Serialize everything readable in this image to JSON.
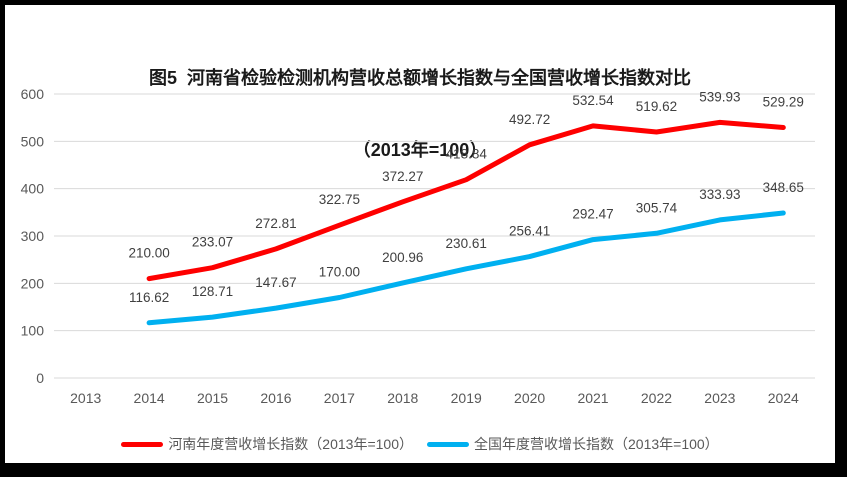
{
  "title": {
    "line1": "图5  河南省检验检测机构营收总额增长指数与全国营收增长指数对比",
    "line2": "（2013年=100）"
  },
  "colors": {
    "henan_series": "#fe0000",
    "national_series": "#00b0f0",
    "gridline": "#d9d9d9",
    "axis_text": "#595959",
    "data_label_text": "#404040",
    "frame_border": "#000000",
    "title_text": "#1a1a1a"
  },
  "chart_data": {
    "type": "line",
    "title": "图5  河南省检验检测机构营收总额增长指数与全国营收增长指数对比（2013年=100）",
    "categories": [
      "2013",
      "2014",
      "2015",
      "2016",
      "2017",
      "2018",
      "2019",
      "2020",
      "2021",
      "2022",
      "2023",
      "2024"
    ],
    "y_ticks": [
      0,
      100,
      200,
      300,
      400,
      500,
      600
    ],
    "y_tick_labels": [
      "0",
      "100",
      "200",
      "300",
      "400",
      "500",
      "600"
    ],
    "ylim": [
      0,
      600
    ],
    "grid": true,
    "legend_position": "bottom",
    "series": [
      {
        "name": "河南年度营收增长指数（2013年=100）",
        "color_key": "henan_series",
        "start_index": 1,
        "values": [
          210.0,
          233.07,
          272.81,
          322.75,
          372.27,
          418.84,
          492.72,
          532.54,
          519.62,
          539.93,
          529.29
        ],
        "labels": [
          "210.00",
          "233.07",
          "272.81",
          "322.75",
          "372.27",
          "418.84",
          "492.72",
          "532.54",
          "519.62",
          "539.93",
          "529.29"
        ]
      },
      {
        "name": "全国年度营收增长指数（2013年=100）",
        "color_key": "national_series",
        "start_index": 1,
        "values": [
          116.62,
          128.71,
          147.67,
          170.0,
          200.96,
          230.61,
          256.41,
          292.47,
          305.74,
          333.93,
          348.65
        ],
        "labels": [
          "116.62",
          "128.71",
          "147.67",
          "170.00",
          "200.96",
          "230.61",
          "256.41",
          "292.47",
          "305.74",
          "333.93",
          "348.65"
        ]
      }
    ]
  },
  "legend": {
    "items": [
      {
        "label": "河南年度营收增长指数（2013年=100）"
      },
      {
        "label": "全国年度营收增长指数（2013年=100）"
      }
    ]
  }
}
